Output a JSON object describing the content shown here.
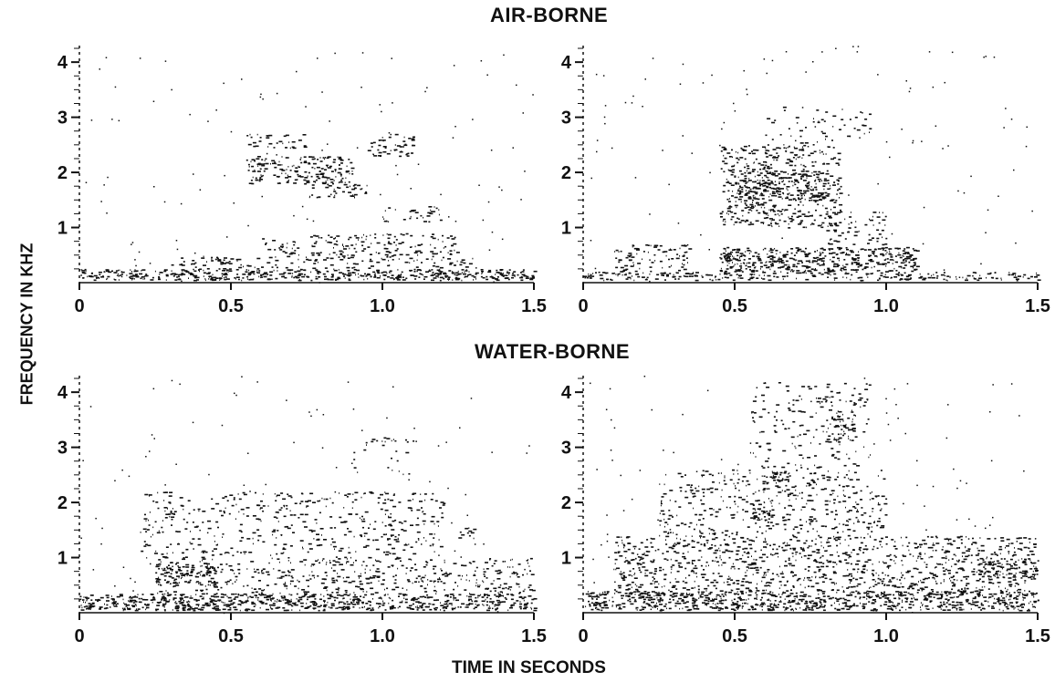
{
  "figure": {
    "top_title": "AIR-BORNE",
    "bottom_title": "WATER-BORNE",
    "ylabel": "FREQUENCY IN KHZ",
    "xlabel": "TIME IN SECONDS"
  },
  "colors": {
    "ink": "#111111",
    "background": "#ffffff"
  },
  "chart_data": [
    {
      "type": "heatmap",
      "subtype": "spectrogram",
      "group": "AIR-BORNE",
      "panel": "top-left",
      "x_ticks": [
        0,
        0.5,
        1.0,
        1.5
      ],
      "x_tick_labels": [
        "0",
        "0.5",
        "1.0",
        "1.5"
      ],
      "y_ticks": [
        1,
        2,
        3,
        4
      ],
      "y_tick_labels": [
        "1",
        "2",
        "3",
        "4"
      ],
      "xlim": [
        0,
        1.5
      ],
      "ylim": [
        0,
        4.3
      ],
      "energy_regions": [
        {
          "t": [
            0.0,
            1.5
          ],
          "f": [
            0.05,
            0.25
          ],
          "density": 0.95
        },
        {
          "t": [
            0.55,
            0.9
          ],
          "f": [
            1.8,
            2.3
          ],
          "density": 0.6
        },
        {
          "t": [
            0.55,
            0.75
          ],
          "f": [
            2.45,
            2.7
          ],
          "density": 0.35
        },
        {
          "t": [
            0.75,
            0.95
          ],
          "f": [
            1.55,
            1.8
          ],
          "density": 0.45
        },
        {
          "t": [
            0.95,
            1.1
          ],
          "f": [
            2.3,
            2.7
          ],
          "density": 0.45
        },
        {
          "t": [
            0.6,
            1.25
          ],
          "f": [
            0.5,
            0.9
          ],
          "density": 0.35
        },
        {
          "t": [
            1.0,
            1.2
          ],
          "f": [
            1.1,
            1.4
          ],
          "density": 0.3
        },
        {
          "t": [
            0.3,
            1.3
          ],
          "f": [
            0.25,
            0.5
          ],
          "density": 0.3
        }
      ]
    },
    {
      "type": "heatmap",
      "subtype": "spectrogram",
      "group": "AIR-BORNE",
      "panel": "top-right",
      "x_ticks": [
        0,
        0.5,
        1.0,
        1.5
      ],
      "x_tick_labels": [
        "0",
        "0.5",
        "1.0",
        "1.5"
      ],
      "y_ticks": [
        1,
        2,
        3,
        4
      ],
      "y_tick_labels": [
        "1",
        "2",
        "3",
        "4"
      ],
      "xlim": [
        0,
        1.5
      ],
      "ylim": [
        0,
        4.3
      ],
      "energy_regions": [
        {
          "t": [
            0.0,
            1.5
          ],
          "f": [
            0.05,
            0.2
          ],
          "density": 0.6
        },
        {
          "t": [
            0.45,
            1.1
          ],
          "f": [
            0.2,
            0.65
          ],
          "density": 0.85
        },
        {
          "t": [
            0.1,
            0.35
          ],
          "f": [
            0.15,
            0.7
          ],
          "density": 0.4
        },
        {
          "t": [
            0.45,
            0.85
          ],
          "f": [
            1.0,
            2.5
          ],
          "density": 0.45
        },
        {
          "t": [
            0.5,
            0.8
          ],
          "f": [
            1.5,
            2.0
          ],
          "density": 0.55
        },
        {
          "t": [
            0.6,
            0.95
          ],
          "f": [
            2.5,
            3.2
          ],
          "density": 0.12
        },
        {
          "t": [
            0.8,
            1.0
          ],
          "f": [
            0.7,
            1.3
          ],
          "density": 0.3
        }
      ]
    },
    {
      "type": "heatmap",
      "subtype": "spectrogram",
      "group": "WATER-BORNE",
      "panel": "bottom-left",
      "x_ticks": [
        0,
        0.5,
        1.0,
        1.5
      ],
      "x_tick_labels": [
        "0",
        "0.5",
        "1.0",
        "1.5"
      ],
      "y_ticks": [
        1,
        2,
        3,
        4
      ],
      "y_tick_labels": [
        "1",
        "2",
        "3",
        "4"
      ],
      "xlim": [
        0,
        1.5
      ],
      "ylim": [
        0,
        4.3
      ],
      "energy_regions": [
        {
          "t": [
            0.0,
            1.5
          ],
          "f": [
            0.05,
            0.35
          ],
          "density": 0.9
        },
        {
          "t": [
            0.25,
            0.45
          ],
          "f": [
            0.5,
            0.9
          ],
          "density": 0.55
        },
        {
          "t": [
            0.25,
            1.5
          ],
          "f": [
            0.35,
            1.0
          ],
          "density": 0.3
        },
        {
          "t": [
            0.28,
            0.32
          ],
          "f": [
            1.75,
            2.0
          ],
          "density": 0.6
        },
        {
          "t": [
            0.2,
            1.2
          ],
          "f": [
            1.0,
            2.2
          ],
          "density": 0.2
        },
        {
          "t": [
            1.25,
            1.3
          ],
          "f": [
            1.35,
            1.55
          ],
          "density": 0.6
        },
        {
          "t": [
            0.9,
            1.1
          ],
          "f": [
            2.5,
            3.2
          ],
          "density": 0.12
        }
      ]
    },
    {
      "type": "heatmap",
      "subtype": "spectrogram",
      "group": "WATER-BORNE",
      "panel": "bottom-right",
      "x_ticks": [
        0,
        0.5,
        1.0,
        1.5
      ],
      "x_tick_labels": [
        "0",
        "0.5",
        "1.0",
        "1.5"
      ],
      "y_ticks": [
        1,
        2,
        3,
        4
      ],
      "y_tick_labels": [
        "1",
        "2",
        "3",
        "4"
      ],
      "xlim": [
        0,
        1.5
      ],
      "ylim": [
        0,
        4.3
      ],
      "energy_regions": [
        {
          "t": [
            0.0,
            1.5
          ],
          "f": [
            0.05,
            0.4
          ],
          "density": 0.9
        },
        {
          "t": [
            0.1,
            1.5
          ],
          "f": [
            0.4,
            1.4
          ],
          "density": 0.4
        },
        {
          "t": [
            0.55,
            0.62
          ],
          "f": [
            1.7,
            2.05
          ],
          "density": 0.75
        },
        {
          "t": [
            0.6,
            0.67
          ],
          "f": [
            2.35,
            2.6
          ],
          "density": 0.7
        },
        {
          "t": [
            0.8,
            0.9
          ],
          "f": [
            3.1,
            3.7
          ],
          "density": 0.5
        },
        {
          "t": [
            0.25,
            1.0
          ],
          "f": [
            1.4,
            2.6
          ],
          "density": 0.25
        },
        {
          "t": [
            0.55,
            0.95
          ],
          "f": [
            2.6,
            4.2
          ],
          "density": 0.15
        },
        {
          "t": [
            1.3,
            1.5
          ],
          "f": [
            0.6,
            1.0
          ],
          "density": 0.5
        }
      ]
    }
  ]
}
